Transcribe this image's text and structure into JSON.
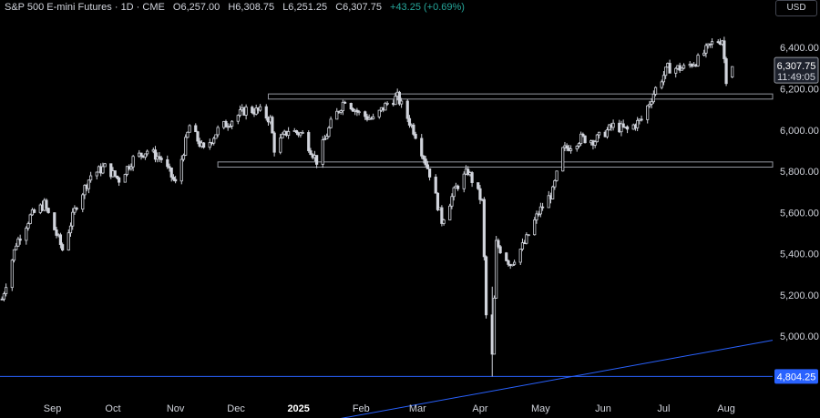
{
  "header": {
    "symbol": "S&P 500 E-mini Futures · 1D · CME",
    "open": "O6,257.00",
    "high": "H6,308.75",
    "low": "L6,251.25",
    "close": "C6,307.75",
    "change": "+43.25 (+0.69%)",
    "change_color": "#26a69a"
  },
  "currency_button": "USD",
  "price_badge": {
    "price": "6,307.75",
    "countdown": "11:49:05"
  },
  "level_badge": {
    "value": "4,804.25",
    "color": "#2962ff"
  },
  "colors": {
    "background": "#000000",
    "candle": "#d1d4dc",
    "trendline": "#2962ff",
    "zone_border": "#9598a1"
  },
  "chart_data": {
    "type": "candlestick",
    "title": "S&P 500 E-mini Futures",
    "y_ticks": [
      "6,400.00",
      "6,200.00",
      "6,000.00",
      "5,800.00",
      "5,600.00",
      "5,400.00",
      "5,200.00",
      "5,000.00"
    ],
    "y_tick_values": [
      6400,
      6200,
      6000,
      5800,
      5600,
      5400,
      5200,
      5000
    ],
    "ylim": [
      4700,
      6560
    ],
    "x_ticks": [
      {
        "label": "Sep",
        "date": "2024-09-01"
      },
      {
        "label": "Oct",
        "date": "2024-10-01"
      },
      {
        "label": "Nov",
        "date": "2024-11-01"
      },
      {
        "label": "Dec",
        "date": "2024-12-01"
      },
      {
        "label": "2025",
        "date": "2025-01-01",
        "bold": true
      },
      {
        "label": "Feb",
        "date": "2025-02-01"
      },
      {
        "label": "Mar",
        "date": "2025-03-01"
      },
      {
        "label": "Apr",
        "date": "2025-04-01"
      },
      {
        "label": "May",
        "date": "2025-05-01"
      },
      {
        "label": "Jun",
        "date": "2025-06-01"
      },
      {
        "label": "Jul",
        "date": "2025-07-01"
      },
      {
        "label": "Aug",
        "date": "2025-08-01"
      }
    ],
    "xlim": [
      "2024-08-06",
      "2025-08-24"
    ],
    "horizontal_line": 4804.25,
    "zones": [
      {
        "start": "2024-12-17",
        "end": "2025-08-24",
        "low": 6150,
        "high": 6175
      },
      {
        "start": "2024-11-22",
        "end": "2025-08-24",
        "low": 5820,
        "high": 5845
      }
    ],
    "trendline": [
      {
        "date": "2024-12-30",
        "value": 4560
      },
      {
        "date": "2025-08-24",
        "value": 4980
      }
    ],
    "candle_path": [
      [
        "2024-08-07",
        5180
      ],
      [
        "2024-08-14",
        5450
      ],
      [
        "2024-08-21",
        5580
      ],
      [
        "2024-08-28",
        5640
      ],
      [
        "2024-09-06",
        5420
      ],
      [
        "2024-09-13",
        5640
      ],
      [
        "2024-09-20",
        5780
      ],
      [
        "2024-09-27",
        5820
      ],
      [
        "2024-10-04",
        5760
      ],
      [
        "2024-10-11",
        5860
      ],
      [
        "2024-10-18",
        5900
      ],
      [
        "2024-10-25",
        5860
      ],
      [
        "2024-11-01",
        5740
      ],
      [
        "2024-11-08",
        6020
      ],
      [
        "2024-11-15",
        5900
      ],
      [
        "2024-11-22",
        6000
      ],
      [
        "2024-11-29",
        6050
      ],
      [
        "2024-12-06",
        6100
      ],
      [
        "2024-12-13",
        6090
      ],
      [
        "2024-12-18",
        6050
      ],
      [
        "2024-12-20",
        5910
      ],
      [
        "2024-12-27",
        6000
      ],
      [
        "2025-01-03",
        5980
      ],
      [
        "2025-01-10",
        5850
      ],
      [
        "2025-01-17",
        6030
      ],
      [
        "2025-01-24",
        6150
      ],
      [
        "2025-01-31",
        6080
      ],
      [
        "2025-02-07",
        6050
      ],
      [
        "2025-02-14",
        6130
      ],
      [
        "2025-02-19",
        6160
      ],
      [
        "2025-02-28",
        5980
      ],
      [
        "2025-03-07",
        5790
      ],
      [
        "2025-03-13",
        5560
      ],
      [
        "2025-03-20",
        5720
      ],
      [
        "2025-03-26",
        5800
      ],
      [
        "2025-04-02",
        5650
      ],
      [
        "2025-04-04",
        5100
      ],
      [
        "2025-04-07",
        4900
      ],
      [
        "2025-04-09",
        5450
      ],
      [
        "2025-04-16",
        5350
      ],
      [
        "2025-04-23",
        5450
      ],
      [
        "2025-04-30",
        5600
      ],
      [
        "2025-05-07",
        5700
      ],
      [
        "2025-05-12",
        5900
      ],
      [
        "2025-05-21",
        5960
      ],
      [
        "2025-05-28",
        5950
      ],
      [
        "2025-06-06",
        6020
      ],
      [
        "2025-06-13",
        6000
      ],
      [
        "2025-06-20",
        6050
      ],
      [
        "2025-06-27",
        6200
      ],
      [
        "2025-07-03",
        6300
      ],
      [
        "2025-07-11",
        6300
      ],
      [
        "2025-07-18",
        6340
      ],
      [
        "2025-07-25",
        6420
      ],
      [
        "2025-07-30",
        6440
      ],
      [
        "2025-08-01",
        6250
      ],
      [
        "2025-08-04",
        6307
      ]
    ],
    "last": {
      "date": "2025-08-04",
      "open": 6257.0,
      "high": 6308.75,
      "low": 6251.25,
      "close": 6307.75
    }
  }
}
